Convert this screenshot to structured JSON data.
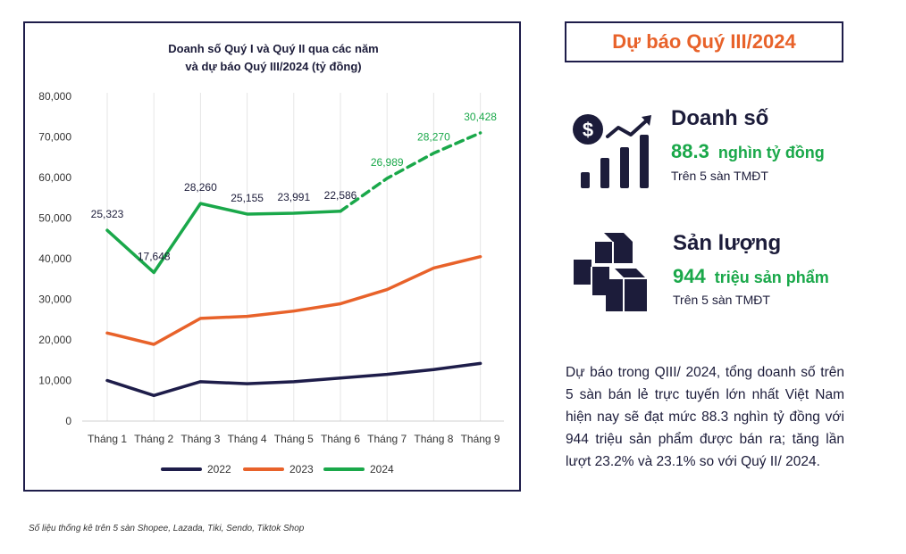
{
  "chart_data": {
    "type": "line",
    "title": "Doanh số Quý I và Quý II qua các năm",
    "subtitle": "và dự báo Quý III/2024 (tỷ đồng)",
    "categories": [
      "Tháng 1",
      "Tháng 2",
      "Tháng 3",
      "Tháng 4",
      "Tháng 5",
      "Tháng 6",
      "Tháng 7",
      "Tháng 8",
      "Tháng 9"
    ],
    "ylim": [
      0,
      80000
    ],
    "yticks": [
      0,
      10000,
      20000,
      30000,
      40000,
      50000,
      60000,
      70000,
      80000
    ],
    "ytick_labels": [
      "0",
      "10,000",
      "20,000",
      "30,000",
      "40,000",
      "50,000",
      "60,000",
      "70,000",
      "80,000"
    ],
    "grid": "vertical",
    "legend_position": "bottom",
    "series": [
      {
        "name": "2022",
        "color": "#1e1d4a",
        "values": [
          10000,
          6300,
          9700,
          9200,
          9700,
          10600,
          11500,
          12700,
          14200
        ]
      },
      {
        "name": "2023",
        "color": "#e8622a",
        "values": [
          21700,
          18900,
          25300,
          25800,
          27100,
          28900,
          32400,
          37700,
          40500
        ]
      },
      {
        "name": "2024",
        "color": "#1aa84a",
        "values": [
          47000,
          36600,
          53600,
          51000,
          51200,
          51700,
          59800,
          66000,
          71000
        ],
        "actual_points": 6
      },
      {
        "name": "2024 data labels",
        "color": "#1aa84a",
        "values": [
          25323,
          17648,
          28260,
          25155,
          23991,
          22586,
          26989,
          28270,
          30428
        ],
        "labels": [
          "25,323",
          "17,648",
          "28,260",
          "25,155",
          "23,991",
          "22,586",
          "26,989",
          "28,270",
          "30,428"
        ]
      }
    ]
  },
  "forecast_title": "Dự báo Quý III/2024",
  "revenue": {
    "title": "Doanh số",
    "value": "88.3",
    "unit": "nghìn tỷ đồng",
    "sub": "Trên 5 sàn TMĐT",
    "icon": "revenue-chart-icon"
  },
  "volume": {
    "title": "Sản lượng",
    "value": "944",
    "unit": "triệu sản phẩm",
    "sub": "Trên 5 sàn TMĐT",
    "icon": "boxes-icon"
  },
  "summary": "Dự báo trong QIII/ 2024, tổng doanh số trên 5 sàn bán lẻ trực tuyến lớn nhất Việt Nam hiện nay sẽ đạt mức 88.3 nghìn tỷ đồng với 944 triệu sản phẩm được bán ra; tăng lần lượt 23.2% và 23.1% so với Quý II/ 2024.",
  "footnote": "Số liệu thống kê trên 5 sàn Shopee, Lazada, Tiki, Sendo, Tiktok Shop",
  "colors": {
    "navy": "#1e1d4a",
    "orange": "#e8622a",
    "green": "#1aa84a"
  }
}
